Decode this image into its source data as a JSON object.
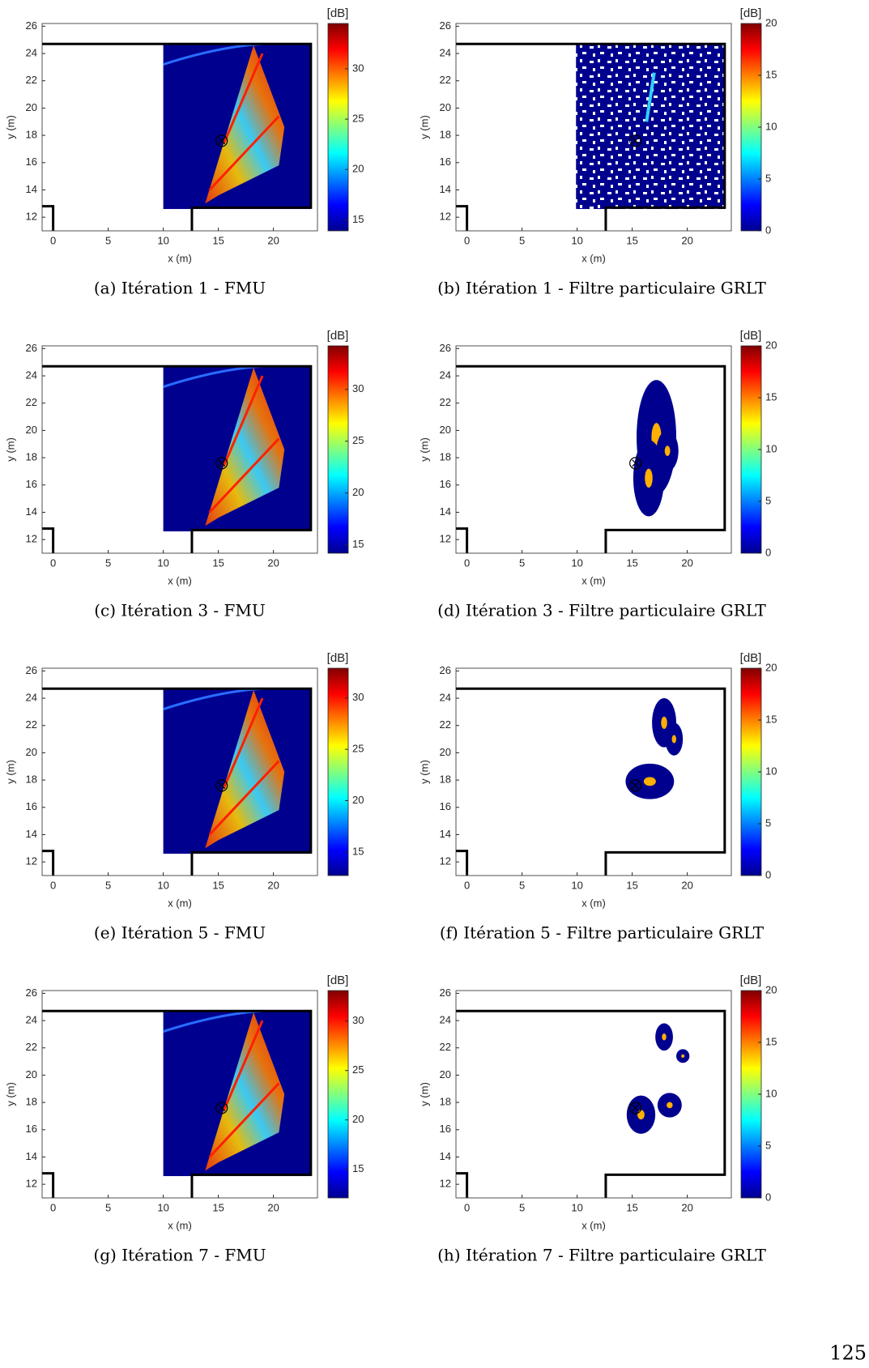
{
  "panels": [
    {
      "caption": "(a) Itération 1 - FMU",
      "xlabel": "x (m)",
      "ylabel": "y (m)",
      "xlim": [
        -1,
        24
      ],
      "ylim": [
        11,
        26.2
      ],
      "xticks": [
        0,
        5,
        10,
        15,
        20
      ],
      "yticks": [
        12,
        14,
        16,
        18,
        20,
        22,
        24,
        26
      ],
      "colorbar": {
        "label": "[dB]",
        "lim": [
          13.9,
          34.5
        ],
        "ticks": [
          15,
          20,
          25,
          30
        ]
      }
    },
    {
      "caption": "(b) Itération 1 - Filtre particulaire GRLT",
      "xlabel": "x (m)",
      "ylabel": "y (m)",
      "xlim": [
        -1,
        24
      ],
      "ylim": [
        11,
        26.2
      ],
      "xticks": [
        0,
        5,
        10,
        15,
        20
      ],
      "yticks": [
        12,
        14,
        16,
        18,
        20,
        22,
        24,
        26
      ],
      "colorbar": {
        "label": "[dB]",
        "lim": [
          0,
          20
        ],
        "ticks": [
          0,
          5,
          10,
          15,
          20
        ]
      }
    },
    {
      "caption": "(c) Itération 3 - FMU",
      "xlabel": "x (m)",
      "ylabel": "y (m)",
      "xlim": [
        -1,
        24
      ],
      "ylim": [
        11,
        26.2
      ],
      "xticks": [
        0,
        5,
        10,
        15,
        20
      ],
      "yticks": [
        12,
        14,
        16,
        18,
        20,
        22,
        24,
        26
      ],
      "colorbar": {
        "label": "[dB]",
        "lim": [
          14.2,
          34.2
        ],
        "ticks": [
          15,
          20,
          25,
          30
        ]
      }
    },
    {
      "caption": "(d) Itération 3 - Filtre particulaire GRLT",
      "xlabel": "x (m)",
      "ylabel": "y (m)",
      "xlim": [
        -1,
        24
      ],
      "ylim": [
        11,
        26.2
      ],
      "xticks": [
        0,
        5,
        10,
        15,
        20
      ],
      "yticks": [
        12,
        14,
        16,
        18,
        20,
        22,
        24,
        26
      ],
      "colorbar": {
        "label": "[dB]",
        "lim": [
          0,
          20
        ],
        "ticks": [
          0,
          5,
          10,
          15,
          20
        ]
      }
    },
    {
      "caption": "(e) Itération 5 - FMU",
      "xlabel": "x (m)",
      "ylabel": "y (m)",
      "xlim": [
        -1,
        24
      ],
      "ylim": [
        11,
        26.2
      ],
      "xticks": [
        0,
        5,
        10,
        15,
        20
      ],
      "yticks": [
        12,
        14,
        16,
        18,
        20,
        22,
        24,
        26
      ],
      "colorbar": {
        "label": "[dB]",
        "lim": [
          12.7,
          32.9
        ],
        "ticks": [
          15,
          20,
          25,
          30
        ]
      }
    },
    {
      "caption": "(f) Itération 5 - Filtre particulaire GRLT",
      "xlabel": "x (m)",
      "ylabel": "y (m)",
      "xlim": [
        -1,
        24
      ],
      "ylim": [
        11,
        26.2
      ],
      "xticks": [
        0,
        5,
        10,
        15,
        20
      ],
      "yticks": [
        12,
        14,
        16,
        18,
        20,
        22,
        24,
        26
      ],
      "colorbar": {
        "label": "[dB]",
        "lim": [
          0,
          20
        ],
        "ticks": [
          0,
          5,
          10,
          15,
          20
        ]
      }
    },
    {
      "caption": "(g) Itération 7 - FMU",
      "xlabel": "x (m)",
      "ylabel": "y (m)",
      "xlim": [
        -1,
        24
      ],
      "ylim": [
        11,
        26.2
      ],
      "xticks": [
        0,
        5,
        10,
        15,
        20
      ],
      "yticks": [
        12,
        14,
        16,
        18,
        20,
        22,
        24,
        26
      ],
      "colorbar": {
        "label": "[dB]",
        "lim": [
          12.1,
          33.1
        ],
        "ticks": [
          15,
          20,
          25,
          30
        ]
      }
    },
    {
      "caption": "(h) Itération 7 - Filtre particulaire GRLT",
      "xlabel": "x (m)",
      "ylabel": "y (m)",
      "xlim": [
        -1,
        24
      ],
      "ylim": [
        11,
        26.2
      ],
      "xticks": [
        0,
        5,
        10,
        15,
        20
      ],
      "yticks": [
        12,
        14,
        16,
        18,
        20,
        22,
        24,
        26
      ],
      "colorbar": {
        "label": "[dB]",
        "lim": [
          0,
          20
        ],
        "ticks": [
          0,
          5,
          10,
          15,
          20
        ]
      }
    }
  ],
  "page_number": "125"
}
